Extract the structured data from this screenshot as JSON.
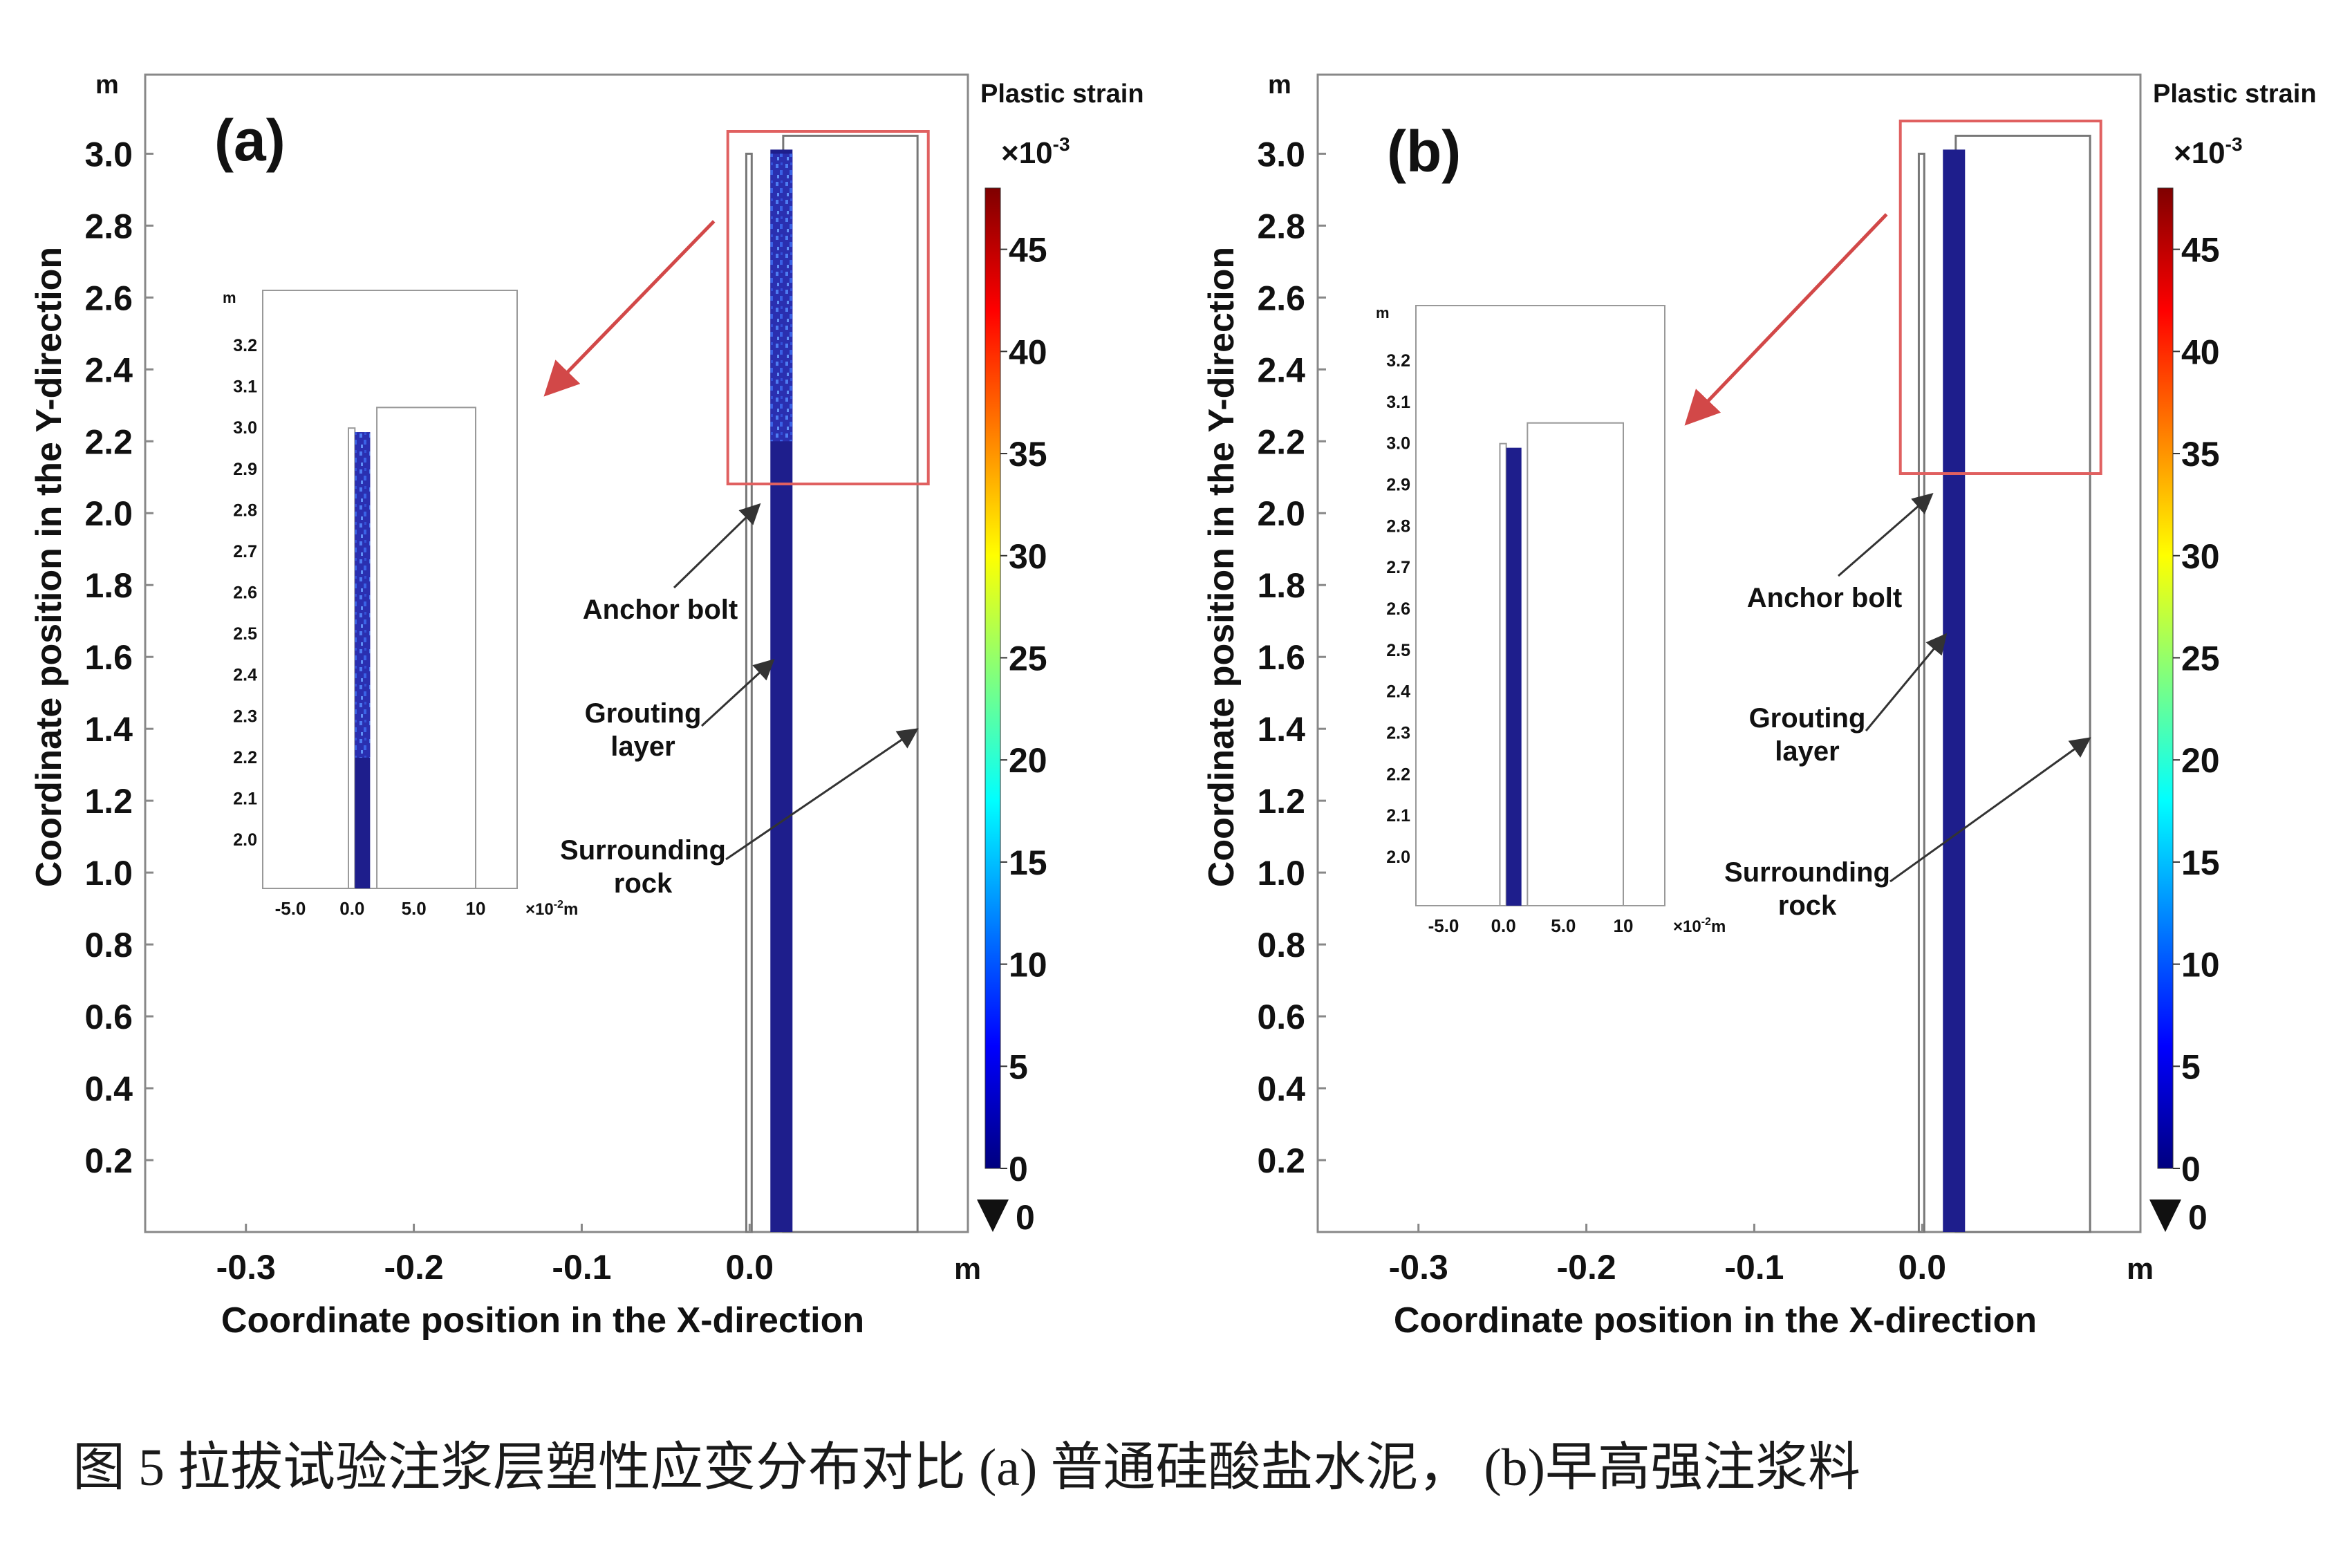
{
  "caption": "图 5 拉拔试验注浆层塑性应变分布对比 (a) 普通硅酸盐水泥， (b)早高强注浆料",
  "chart_data": [
    {
      "type": "heatmap",
      "panel_label": "(a)",
      "xlabel": "Coordinate position in the X-direction",
      "ylabel": "Coordinate position in the Y-direction",
      "x_unit": "m",
      "y_unit": "m",
      "xlim": [
        -0.36,
        0.13
      ],
      "ylim": [
        0.0,
        3.22
      ],
      "x_ticks": [
        "-0.3",
        "-0.2",
        "-0.1",
        "0.0"
      ],
      "y_ticks": [
        "0.2",
        "0.4",
        "0.6",
        "0.8",
        "1.0",
        "1.2",
        "1.4",
        "1.6",
        "1.8",
        "2.0",
        "2.2",
        "2.4",
        "2.6",
        "2.8",
        "3.0"
      ],
      "colorbar": {
        "title": "Plastic strain",
        "multiplier_base": "×10",
        "multiplier_exp": "-3",
        "min": 0,
        "max": 48,
        "ticks": [
          "45",
          "40",
          "35",
          "30",
          "25",
          "20",
          "15",
          "10",
          "5",
          "0"
        ],
        "min_marker": "0"
      },
      "regions": {
        "bolt_x": [
          0.0,
          0.02
        ],
        "grout_x": [
          0.0,
          0.0
        ],
        "rock_x": [
          0.02,
          0.1
        ],
        "bolt_top_y": 3.0,
        "grout_top_y": 3.05,
        "rock_top_y": 3.05,
        "high_strain_band_y": [
          2.2,
          3.0
        ]
      },
      "annotations": {
        "anchor_bolt": "Anchor bolt",
        "grouting_1": "Grouting",
        "grouting_2": "layer",
        "rock_1": "Surrounding",
        "rock_2": "rock"
      },
      "inset": {
        "y_unit": "m",
        "x_unit_base": "×10",
        "x_unit_exp": "-2",
        "x_unit_suffix": "m",
        "x_ticks": [
          "-5.0",
          "0.0",
          "5.0",
          "10"
        ],
        "y_ticks": [
          "3.2",
          "3.1",
          "3.0",
          "2.9",
          "2.8",
          "2.7",
          "2.6",
          "2.5",
          "2.4",
          "2.3",
          "2.2",
          "2.1",
          "2.0"
        ]
      }
    },
    {
      "type": "heatmap",
      "panel_label": "(b)",
      "xlabel": "Coordinate position in the X-direction",
      "ylabel": "Coordinate position in the Y-direction",
      "x_unit": "m",
      "y_unit": "m",
      "xlim": [
        -0.36,
        0.13
      ],
      "ylim": [
        0.0,
        3.22
      ],
      "x_ticks": [
        "-0.3",
        "-0.2",
        "-0.1",
        "0.0"
      ],
      "y_ticks": [
        "0.2",
        "0.4",
        "0.6",
        "0.8",
        "1.0",
        "1.2",
        "1.4",
        "1.6",
        "1.8",
        "2.0",
        "2.2",
        "2.4",
        "2.6",
        "2.8",
        "3.0"
      ],
      "colorbar": {
        "title": "Plastic strain",
        "multiplier_base": "×10",
        "multiplier_exp": "-3",
        "min": 0,
        "max": 48,
        "ticks": [
          "45",
          "40",
          "35",
          "30",
          "25",
          "20",
          "15",
          "10",
          "5",
          "0"
        ],
        "min_marker": "0"
      },
      "regions": {
        "bolt_x": [
          0.0,
          0.02
        ],
        "grout_x": [
          0.0,
          0.0
        ],
        "rock_x": [
          0.02,
          0.1
        ],
        "bolt_top_y": 3.0,
        "grout_top_y": 3.05,
        "rock_top_y": 3.05,
        "high_strain_band_y": null
      },
      "annotations": {
        "anchor_bolt": "Anchor bolt",
        "grouting_1": "Grouting",
        "grouting_2": "layer",
        "rock_1": "Surrounding",
        "rock_2": "rock"
      },
      "inset": {
        "y_unit": "m",
        "x_unit_base": "×10",
        "x_unit_exp": "-2",
        "x_unit_suffix": "m",
        "x_ticks": [
          "-5.0",
          "0.0",
          "5.0",
          "10"
        ],
        "y_ticks": [
          "3.2",
          "3.1",
          "3.0",
          "2.9",
          "2.8",
          "2.7",
          "2.6",
          "2.5",
          "2.4",
          "2.3",
          "2.2",
          "2.1",
          "2.0"
        ]
      }
    }
  ],
  "colors": {
    "strain_low": "#1e1e8c",
    "strain_high_speckle": "#3a6cf0",
    "zoom_box": "#e06060",
    "zoom_arrow": "#d24848",
    "axis": "#888888",
    "colormap": [
      "#00007f",
      "#0000ff",
      "#007fff",
      "#00ffff",
      "#7fff7f",
      "#ffff00",
      "#ff7f00",
      "#ff0000",
      "#7f0000"
    ]
  }
}
